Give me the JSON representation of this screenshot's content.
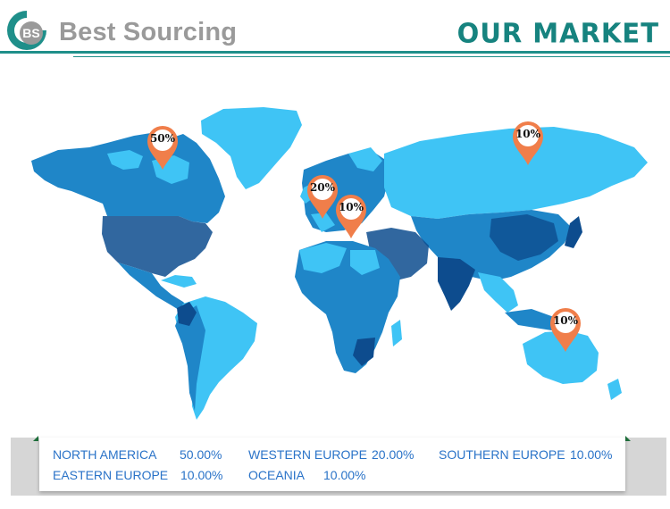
{
  "header": {
    "logo_text": "BS",
    "brand": "Best Sourcing",
    "title": "OUR MARKET"
  },
  "colors": {
    "teal": "#1f8f8a",
    "pin": "#f07e4a",
    "land_light": "#3fc4f5",
    "land_mid": "#1f86c8",
    "land_dark": "#0d4c8e"
  },
  "pins": [
    {
      "label": "50%",
      "region": "North America"
    },
    {
      "label": "20%",
      "region": "Western Europe"
    },
    {
      "label": "10%",
      "region": "Southern Europe"
    },
    {
      "label": "10%",
      "region": "Eastern Europe"
    },
    {
      "label": "10%",
      "region": "Oceania"
    }
  ],
  "legend": [
    {
      "name": "NORTH AMERICA",
      "value": "50.00%"
    },
    {
      "name": "WESTERN EUROPE",
      "value": "20.00%"
    },
    {
      "name": "SOUTHERN EUROPE",
      "value": "10.00%"
    },
    {
      "name": "EASTERN EUROPE",
      "value": "10.00%"
    },
    {
      "name": "OCEANIA",
      "value": "10.00%"
    }
  ]
}
